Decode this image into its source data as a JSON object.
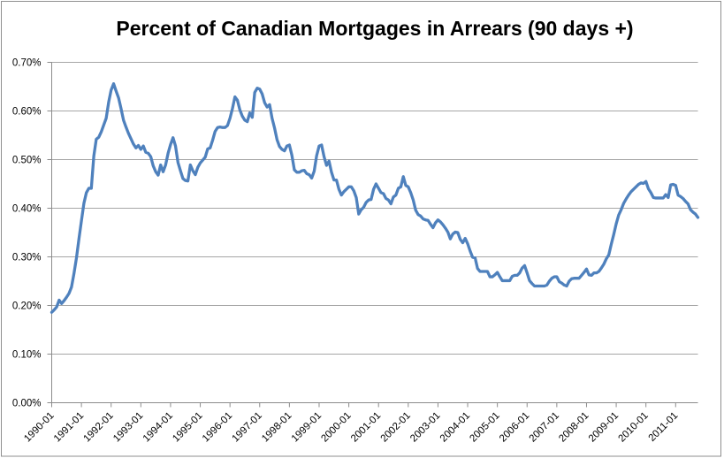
{
  "window": {
    "background_color": "#ffffff",
    "border_color": "#8f8f8f"
  },
  "chart_data": {
    "type": "line",
    "title": "Percent of Canadian Mortgages in Arrears (90 days +)",
    "xlabel": "",
    "ylabel": "",
    "x_start": "1990-01",
    "x_end": "2011-10",
    "x_frequency": "monthly",
    "x_tick_labels": [
      "1990-01",
      "1991-01",
      "1992-01",
      "1993-01",
      "1994-01",
      "1995-01",
      "1996-01",
      "1997-01",
      "1998-01",
      "1999-01",
      "2000-01",
      "2001-01",
      "2002-01",
      "2003-01",
      "2004-01",
      "2005-01",
      "2006-01",
      "2007-01",
      "2008-01",
      "2009-01",
      "2010-01",
      "2011-01"
    ],
    "x_tick_interval_months": 12,
    "y_tick_labels": [
      "0.00%",
      "0.10%",
      "0.20%",
      "0.30%",
      "0.40%",
      "0.50%",
      "0.60%",
      "0.70%"
    ],
    "ylim": [
      0.0,
      0.7
    ],
    "y_unit": "percent",
    "grid": "horizontal",
    "legend": "none",
    "series_name": "Percent of mortgages in arrears (90 days +)",
    "line_color": "#4f81bd",
    "gridline_color": "#a6a6a6",
    "axis_color": "#8c8c8c",
    "values": [
      0.186,
      0.191,
      0.197,
      0.211,
      0.204,
      0.21,
      0.217,
      0.225,
      0.238,
      0.266,
      0.298,
      0.337,
      0.374,
      0.41,
      0.432,
      0.441,
      0.441,
      0.507,
      0.542,
      0.546,
      0.557,
      0.571,
      0.585,
      0.618,
      0.643,
      0.656,
      0.641,
      0.627,
      0.605,
      0.581,
      0.567,
      0.554,
      0.543,
      0.532,
      0.524,
      0.529,
      0.521,
      0.528,
      0.515,
      0.513,
      0.506,
      0.487,
      0.475,
      0.468,
      0.489,
      0.475,
      0.489,
      0.513,
      0.531,
      0.545,
      0.528,
      0.494,
      0.477,
      0.461,
      0.457,
      0.456,
      0.489,
      0.477,
      0.469,
      0.484,
      0.493,
      0.499,
      0.505,
      0.522,
      0.524,
      0.54,
      0.558,
      0.566,
      0.567,
      0.566,
      0.566,
      0.57,
      0.585,
      0.605,
      0.629,
      0.622,
      0.602,
      0.589,
      0.581,
      0.578,
      0.596,
      0.587,
      0.638,
      0.647,
      0.645,
      0.635,
      0.617,
      0.608,
      0.613,
      0.585,
      0.565,
      0.541,
      0.527,
      0.521,
      0.518,
      0.528,
      0.53,
      0.509,
      0.479,
      0.474,
      0.474,
      0.477,
      0.478,
      0.471,
      0.469,
      0.462,
      0.476,
      0.508,
      0.528,
      0.53,
      0.506,
      0.488,
      0.497,
      0.474,
      0.458,
      0.458,
      0.439,
      0.427,
      0.434,
      0.439,
      0.444,
      0.444,
      0.436,
      0.422,
      0.388,
      0.397,
      0.402,
      0.412,
      0.417,
      0.418,
      0.439,
      0.45,
      0.441,
      0.432,
      0.43,
      0.42,
      0.417,
      0.409,
      0.423,
      0.427,
      0.441,
      0.444,
      0.465,
      0.447,
      0.444,
      0.432,
      0.417,
      0.396,
      0.387,
      0.384,
      0.378,
      0.376,
      0.375,
      0.367,
      0.36,
      0.37,
      0.376,
      0.372,
      0.366,
      0.359,
      0.351,
      0.337,
      0.347,
      0.351,
      0.35,
      0.336,
      0.329,
      0.338,
      0.327,
      0.312,
      0.299,
      0.298,
      0.276,
      0.27,
      0.27,
      0.27,
      0.27,
      0.259,
      0.259,
      0.263,
      0.268,
      0.259,
      0.251,
      0.251,
      0.251,
      0.251,
      0.26,
      0.262,
      0.262,
      0.267,
      0.277,
      0.282,
      0.267,
      0.251,
      0.245,
      0.24,
      0.24,
      0.24,
      0.24,
      0.24,
      0.242,
      0.25,
      0.256,
      0.259,
      0.259,
      0.249,
      0.246,
      0.242,
      0.24,
      0.25,
      0.255,
      0.256,
      0.256,
      0.256,
      0.262,
      0.268,
      0.275,
      0.263,
      0.262,
      0.267,
      0.267,
      0.27,
      0.277,
      0.285,
      0.296,
      0.304,
      0.326,
      0.346,
      0.368,
      0.386,
      0.397,
      0.41,
      0.419,
      0.427,
      0.434,
      0.439,
      0.444,
      0.449,
      0.452,
      0.451,
      0.455,
      0.44,
      0.432,
      0.422,
      0.421,
      0.421,
      0.421,
      0.421,
      0.428,
      0.422,
      0.448,
      0.449,
      0.447,
      0.427,
      0.424,
      0.42,
      0.414,
      0.409,
      0.397,
      0.392,
      0.388,
      0.381
    ]
  }
}
